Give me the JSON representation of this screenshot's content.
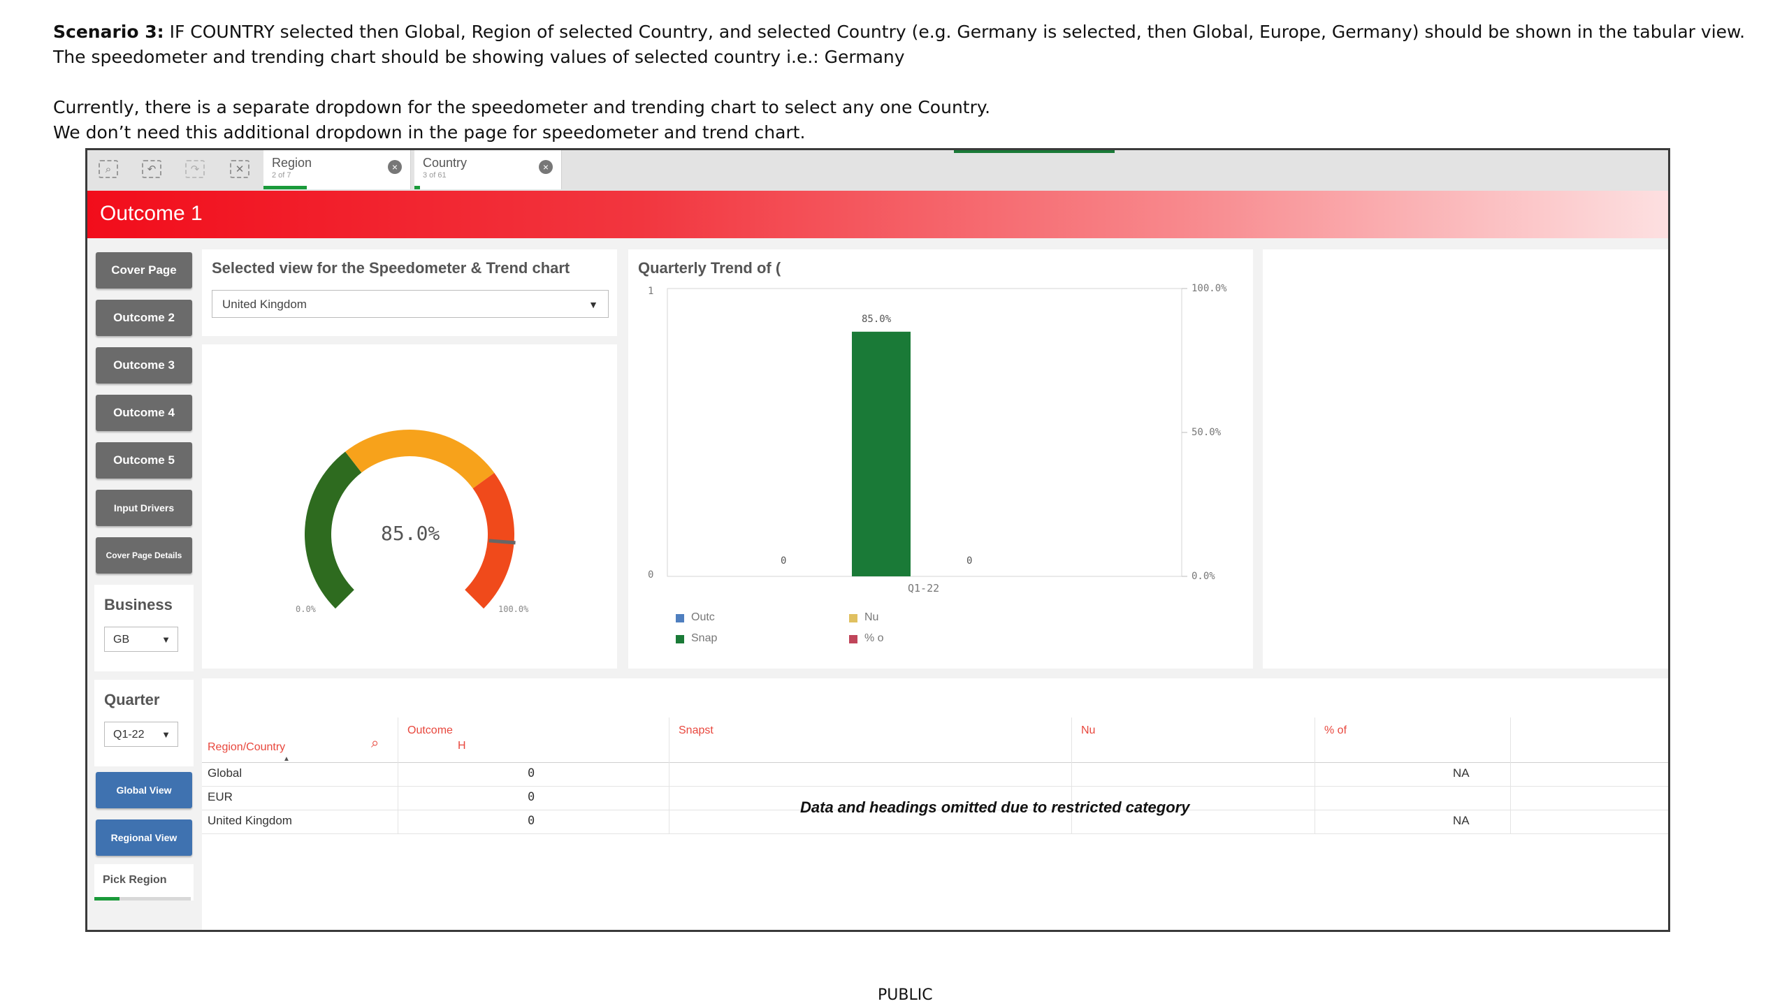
{
  "doc": {
    "line1_bold": "Scenario 3:",
    "line1_rest": " IF COUNTRY selected then Global, Region of selected Country, and selected Country (e.g. Germany is selected, then Global, Europe, Germany) should be shown in the tabular view.",
    "line2": "The speedometer and trending chart should be showing values of selected country i.e.: Germany",
    "line3": "Currently, there is a separate dropdown for the speedometer and trending chart to select any one Country.",
    "line4": "We don’t need this additional dropdown in the page for speedometer and trend chart.",
    "footer": "PUBLIC"
  },
  "toolbar": {
    "icons": [
      "smart-search-icon",
      "step-back-icon",
      "step-forward-icon",
      "clear-selections-icon"
    ],
    "selections": [
      {
        "label": "Region",
        "sub": "2 of 7"
      },
      {
        "label": "Country",
        "sub": "3 of 61"
      }
    ]
  },
  "header": {
    "title": "Outcome 1"
  },
  "colors": {
    "green": "#1a7a37",
    "gauge_dark_green": "#2e6b1f",
    "gauge_orange": "#f7a21b",
    "gauge_red": "#f04a1b",
    "header_red": "#f20d1b",
    "nav_blue": "#3f72b0",
    "nav_gray": "#6b6b6b"
  },
  "sidebar": {
    "buttons": [
      "Cover Page",
      "Outcome 2",
      "Outcome 3",
      "Outcome 4",
      "Outcome 5",
      "Input Drivers",
      "Cover Page Details"
    ],
    "business": {
      "label": "Business",
      "value": "GB"
    },
    "quarter": {
      "label": "Quarter",
      "value": "Q1-22"
    },
    "global_view": "Global View",
    "regional_view": "Regional View",
    "pick_region": "Pick Region"
  },
  "speedo": {
    "title": "Selected view for the Speedometer & Trend chart",
    "selected": "United Kingdom",
    "value_label": "85.0%",
    "value": 0.85,
    "min_label": "0.0%",
    "max_label": "100.0%"
  },
  "chart": {
    "title": "Quarterly Trend of (",
    "left_axis_top": "1",
    "left_axis_bottom": "0",
    "legend": [
      "Outc",
      "Nu",
      "Snap",
      "% o"
    ],
    "legend_colors": [
      "#4f7fbf",
      "#e0c060",
      "#1a7a37",
      "#c0455a"
    ]
  },
  "chart_data": {
    "type": "bar",
    "categories": [
      "Q1-22"
    ],
    "series": [
      {
        "name": "Outc",
        "values": [
          0
        ]
      },
      {
        "name": "Snap",
        "values": [
          85.0
        ]
      },
      {
        "name": "Nu",
        "values": [
          0
        ]
      }
    ],
    "data_labels": [
      "0",
      "85.0%",
      "0"
    ],
    "xlabel": "",
    "ylabel": "",
    "right_ticks": [
      "100.0%",
      "50.0%",
      "0.0%"
    ],
    "ylim": [
      0,
      100
    ]
  },
  "table": {
    "headers": {
      "region": "Region/Country",
      "outcome1": "Outcome",
      "outcome2": "H",
      "snapshot": "Snapst",
      "nu": "Nu",
      "pct": "% of"
    },
    "rows": [
      {
        "name": "Global",
        "value": "0",
        "na": "NA"
      },
      {
        "name": "EUR",
        "value": "0",
        "na": ""
      },
      {
        "name": "United Kingdom",
        "value": "0",
        "na": "NA"
      }
    ],
    "notice": "Data and headings omitted due to restricted category"
  }
}
